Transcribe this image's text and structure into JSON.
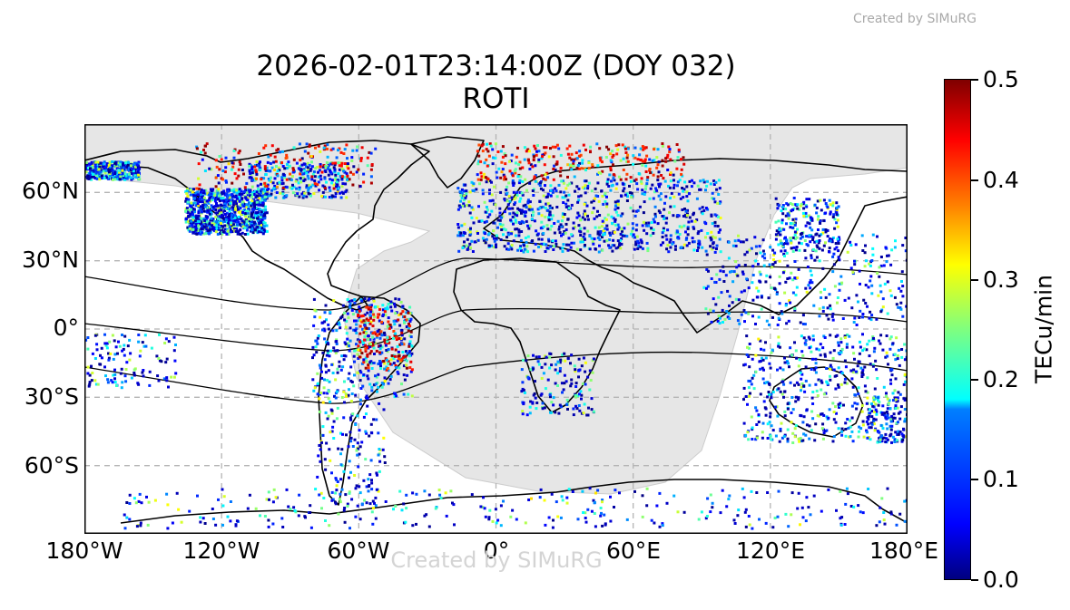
{
  "watermark": "Created by SIMuRG",
  "title": {
    "line1": "2026-02-01T23:14:00Z (DOY 032)",
    "line2": "ROTI"
  },
  "map": {
    "projection": "PlateCarree",
    "extent": {
      "lon": [
        -180,
        180
      ],
      "lat": [
        -90,
        90
      ]
    },
    "gridlines": true,
    "night_shading_color": "#e6e6e6",
    "lat_ticks": [
      {
        "lat": 60,
        "label": "60°N"
      },
      {
        "lat": 30,
        "label": "30°N"
      },
      {
        "lat": 0,
        "label": "0°"
      },
      {
        "lat": -30,
        "label": "30°S"
      },
      {
        "lat": -60,
        "label": "60°S"
      }
    ],
    "lon_ticks": [
      {
        "lon": -180,
        "label": "180°W"
      },
      {
        "lon": -120,
        "label": "120°W"
      },
      {
        "lon": -60,
        "label": "60°W"
      },
      {
        "lon": 0,
        "label": "0°"
      },
      {
        "lon": 60,
        "label": "60°E"
      },
      {
        "lon": 120,
        "label": "120°E"
      },
      {
        "lon": 180,
        "label": "180°E"
      }
    ],
    "map_watermark": "Created by SIMuRG"
  },
  "colorbar": {
    "label": "TECu/min",
    "min": 0.0,
    "max": 0.5,
    "colormap": "jet",
    "ticks": [
      {
        "value": 0.0,
        "label": "0.0"
      },
      {
        "value": 0.1,
        "label": "0.1"
      },
      {
        "value": 0.2,
        "label": "0.2"
      },
      {
        "value": 0.3,
        "label": "0.3"
      },
      {
        "value": 0.4,
        "label": "0.4"
      },
      {
        "value": 0.5,
        "label": "0.5"
      }
    ]
  }
}
